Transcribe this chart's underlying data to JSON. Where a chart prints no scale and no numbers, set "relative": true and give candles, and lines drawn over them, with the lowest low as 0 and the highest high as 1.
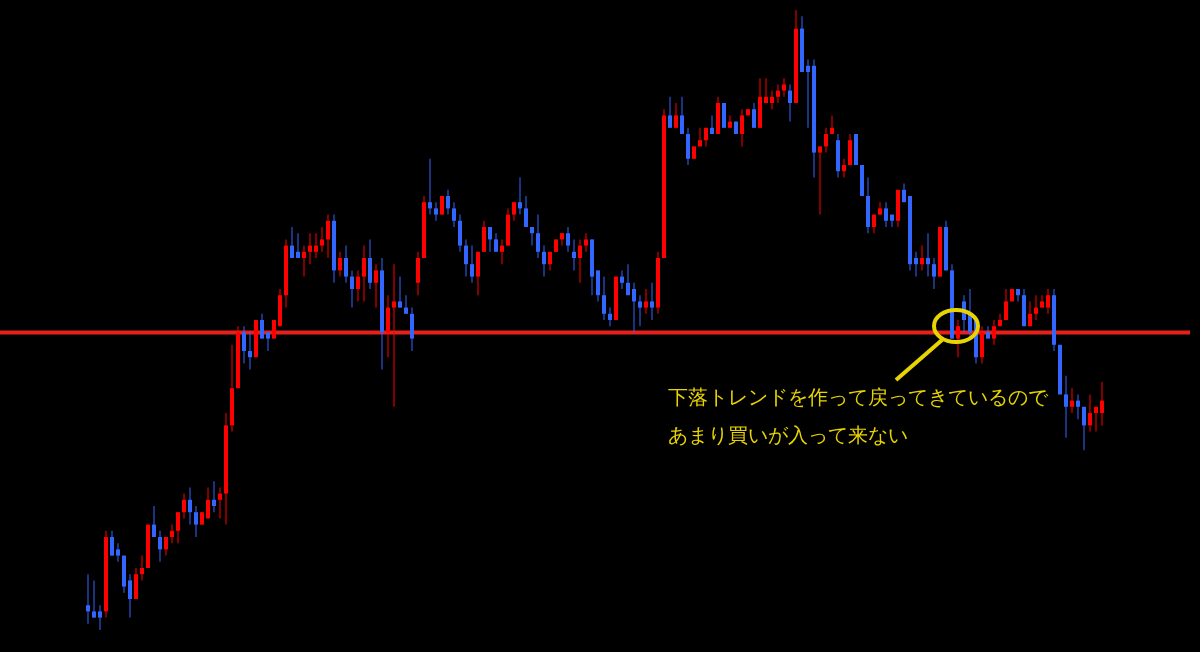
{
  "chart_data": {
    "type": "candlestick",
    "relative": true,
    "tick_labels": false,
    "categories": [
      null,
      null,
      null,
      null,
      null,
      null,
      null,
      null,
      null,
      null,
      null,
      null,
      null,
      null,
      null,
      null,
      null,
      null,
      null,
      null,
      null,
      null,
      null,
      null,
      null,
      null,
      null,
      null,
      null,
      null,
      null,
      null,
      null,
      null,
      null,
      null,
      null,
      null,
      null,
      null,
      null,
      null,
      null,
      null,
      null,
      null,
      null,
      null,
      null,
      null,
      null,
      null,
      null,
      null,
      null,
      null,
      null,
      null,
      null,
      null,
      null,
      null,
      null,
      null,
      null,
      null,
      null,
      null,
      null,
      null,
      null,
      null,
      null,
      null,
      null,
      null,
      null,
      null,
      null,
      null,
      null,
      null,
      null,
      null,
      null,
      null,
      null,
      null,
      null,
      null,
      null,
      null,
      null,
      null,
      null,
      null,
      null,
      null,
      null,
      null,
      null,
      null,
      null,
      null,
      null,
      null,
      null,
      null,
      null,
      null,
      null,
      null,
      null,
      null,
      null,
      null,
      null,
      null,
      null,
      null,
      null,
      null,
      null,
      null,
      null,
      null,
      null,
      null,
      null,
      null,
      null,
      null,
      null,
      null,
      null,
      null,
      null,
      null,
      null,
      null,
      null,
      null,
      null,
      null,
      null,
      null,
      null,
      null,
      null,
      null,
      null,
      null,
      null,
      null,
      null,
      null,
      null,
      null,
      null,
      null,
      null,
      null,
      null,
      null,
      null,
      null,
      null,
      null,
      null,
      null
    ],
    "ohlc": [
      [
        0.04,
        0.09,
        0.01,
        0.03
      ],
      [
        0.03,
        0.08,
        0.02,
        0.02
      ],
      [
        0.03,
        0.04,
        0.0,
        0.02
      ],
      [
        0.03,
        0.16,
        0.02,
        0.15
      ],
      [
        0.15,
        0.16,
        0.12,
        0.12
      ],
      [
        0.13,
        0.14,
        0.11,
        0.12
      ],
      [
        0.12,
        0.12,
        0.06,
        0.07
      ],
      [
        0.08,
        0.09,
        0.02,
        0.05
      ],
      [
        0.05,
        0.1,
        0.05,
        0.09
      ],
      [
        0.09,
        0.12,
        0.08,
        0.1
      ],
      [
        0.1,
        0.17,
        0.1,
        0.17
      ],
      [
        0.17,
        0.2,
        0.15,
        0.15
      ],
      [
        0.15,
        0.16,
        0.11,
        0.13
      ],
      [
        0.13,
        0.15,
        0.12,
        0.15
      ],
      [
        0.15,
        0.17,
        0.14,
        0.16
      ],
      [
        0.16,
        0.19,
        0.14,
        0.19
      ],
      [
        0.19,
        0.22,
        0.18,
        0.21
      ],
      [
        0.21,
        0.23,
        0.17,
        0.19
      ],
      [
        0.19,
        0.2,
        0.15,
        0.17
      ],
      [
        0.17,
        0.19,
        0.17,
        0.19
      ],
      [
        0.18,
        0.23,
        0.18,
        0.21
      ],
      [
        0.21,
        0.24,
        0.19,
        0.2
      ],
      [
        0.21,
        0.23,
        0.18,
        0.22
      ],
      [
        0.22,
        0.35,
        0.17,
        0.33
      ],
      [
        0.33,
        0.46,
        0.32,
        0.39
      ],
      [
        0.39,
        0.49,
        0.39,
        0.48
      ],
      [
        0.48,
        0.49,
        0.43,
        0.45
      ],
      [
        0.45,
        0.48,
        0.42,
        0.44
      ],
      [
        0.44,
        0.5,
        0.44,
        0.5
      ],
      [
        0.5,
        0.51,
        0.47,
        0.47
      ],
      [
        0.48,
        0.48,
        0.45,
        0.47
      ],
      [
        0.47,
        0.5,
        0.47,
        0.5
      ],
      [
        0.49,
        0.55,
        0.49,
        0.54
      ],
      [
        0.54,
        0.63,
        0.52,
        0.62
      ],
      [
        0.62,
        0.65,
        0.6,
        0.6
      ],
      [
        0.61,
        0.64,
        0.6,
        0.6
      ],
      [
        0.6,
        0.62,
        0.57,
        0.61
      ],
      [
        0.61,
        0.64,
        0.59,
        0.62
      ],
      [
        0.61,
        0.64,
        0.6,
        0.62
      ],
      [
        0.62,
        0.65,
        0.61,
        0.63
      ],
      [
        0.63,
        0.67,
        0.6,
        0.66
      ],
      [
        0.66,
        0.67,
        0.56,
        0.58
      ],
      [
        0.58,
        0.61,
        0.57,
        0.6
      ],
      [
        0.6,
        0.62,
        0.56,
        0.57
      ],
      [
        0.57,
        0.58,
        0.52,
        0.55
      ],
      [
        0.55,
        0.58,
        0.53,
        0.57
      ],
      [
        0.57,
        0.62,
        0.53,
        0.6
      ],
      [
        0.6,
        0.63,
        0.55,
        0.56
      ],
      [
        0.56,
        0.59,
        0.52,
        0.58
      ],
      [
        0.58,
        0.6,
        0.42,
        0.48
      ],
      [
        0.48,
        0.54,
        0.44,
        0.52
      ],
      [
        0.52,
        0.59,
        0.36,
        0.53
      ],
      [
        0.53,
        0.57,
        0.52,
        0.52
      ],
      [
        0.52,
        0.54,
        0.51,
        0.51
      ],
      [
        0.51,
        0.52,
        0.45,
        0.47
      ],
      [
        0.56,
        0.61,
        0.54,
        0.6
      ],
      [
        0.6,
        0.7,
        0.6,
        0.69
      ],
      [
        0.69,
        0.76,
        0.67,
        0.68
      ],
      [
        0.68,
        0.69,
        0.66,
        0.67
      ],
      [
        0.67,
        0.7,
        0.67,
        0.7
      ],
      [
        0.7,
        0.71,
        0.67,
        0.68
      ],
      [
        0.68,
        0.69,
        0.65,
        0.66
      ],
      [
        0.66,
        0.67,
        0.61,
        0.62
      ],
      [
        0.62,
        0.63,
        0.57,
        0.59
      ],
      [
        0.59,
        0.62,
        0.56,
        0.57
      ],
      [
        0.57,
        0.61,
        0.54,
        0.61
      ],
      [
        0.61,
        0.66,
        0.61,
        0.65
      ],
      [
        0.65,
        0.65,
        0.61,
        0.63
      ],
      [
        0.63,
        0.64,
        0.61,
        0.61
      ],
      [
        0.61,
        0.63,
        0.59,
        0.62
      ],
      [
        0.62,
        0.68,
        0.62,
        0.67
      ],
      [
        0.67,
        0.69,
        0.66,
        0.69
      ],
      [
        0.69,
        0.73,
        0.67,
        0.68
      ],
      [
        0.68,
        0.7,
        0.65,
        0.65
      ],
      [
        0.65,
        0.65,
        0.62,
        0.64
      ],
      [
        0.64,
        0.67,
        0.6,
        0.61
      ],
      [
        0.61,
        0.62,
        0.57,
        0.59
      ],
      [
        0.59,
        0.61,
        0.58,
        0.61
      ],
      [
        0.61,
        0.63,
        0.61,
        0.63
      ],
      [
        0.63,
        0.64,
        0.62,
        0.64
      ],
      [
        0.64,
        0.65,
        0.61,
        0.62
      ],
      [
        0.61,
        0.63,
        0.58,
        0.6
      ],
      [
        0.6,
        0.63,
        0.56,
        0.62
      ],
      [
        0.62,
        0.64,
        0.61,
        0.63
      ],
      [
        0.63,
        0.63,
        0.54,
        0.57
      ],
      [
        0.58,
        0.58,
        0.53,
        0.54
      ],
      [
        0.54,
        0.57,
        0.5,
        0.51
      ],
      [
        0.51,
        0.52,
        0.49,
        0.5
      ],
      [
        0.5,
        0.57,
        0.5,
        0.57
      ],
      [
        0.57,
        0.58,
        0.55,
        0.56
      ],
      [
        0.56,
        0.59,
        0.54,
        0.54
      ],
      [
        0.55,
        0.56,
        0.48,
        0.53
      ],
      [
        0.53,
        0.54,
        0.49,
        0.52
      ],
      [
        0.52,
        0.55,
        0.51,
        0.53
      ],
      [
        0.53,
        0.56,
        0.5,
        0.52
      ],
      [
        0.52,
        0.61,
        0.51,
        0.6
      ],
      [
        0.6,
        0.84,
        0.6,
        0.83
      ],
      [
        0.83,
        0.86,
        0.81,
        0.81
      ],
      [
        0.81,
        0.85,
        0.81,
        0.83
      ],
      [
        0.83,
        0.86,
        0.8,
        0.8
      ],
      [
        0.8,
        0.81,
        0.75,
        0.76
      ],
      [
        0.76,
        0.78,
        0.76,
        0.78
      ],
      [
        0.78,
        0.81,
        0.78,
        0.79
      ],
      [
        0.79,
        0.81,
        0.78,
        0.81
      ],
      [
        0.81,
        0.83,
        0.8,
        0.8
      ],
      [
        0.8,
        0.86,
        0.8,
        0.85
      ],
      [
        0.85,
        0.85,
        0.81,
        0.81
      ],
      [
        0.81,
        0.83,
        0.81,
        0.82
      ],
      [
        0.82,
        0.82,
        0.8,
        0.8
      ],
      [
        0.8,
        0.84,
        0.78,
        0.83
      ],
      [
        0.83,
        0.84,
        0.83,
        0.84
      ],
      [
        0.84,
        0.85,
        0.81,
        0.81
      ],
      [
        0.81,
        0.89,
        0.81,
        0.86
      ],
      [
        0.85,
        0.89,
        0.85,
        0.86
      ],
      [
        0.85,
        0.87,
        0.84,
        0.86
      ],
      [
        0.86,
        0.88,
        0.85,
        0.87
      ],
      [
        0.87,
        0.89,
        0.86,
        0.88
      ],
      [
        0.87,
        0.88,
        0.82,
        0.85
      ],
      [
        0.85,
        1.0,
        0.85,
        0.97
      ],
      [
        0.97,
        0.99,
        0.9,
        0.9
      ],
      [
        0.91,
        0.92,
        0.81,
        0.9
      ],
      [
        0.91,
        0.92,
        0.73,
        0.77
      ],
      [
        0.77,
        0.78,
        0.67,
        0.78
      ],
      [
        0.78,
        0.81,
        0.77,
        0.8
      ],
      [
        0.8,
        0.83,
        0.8,
        0.81
      ],
      [
        0.79,
        0.8,
        0.73,
        0.74
      ],
      [
        0.74,
        0.76,
        0.73,
        0.75
      ],
      [
        0.75,
        0.8,
        0.75,
        0.79
      ],
      [
        0.8,
        0.8,
        0.75,
        0.75
      ],
      [
        0.75,
        0.75,
        0.7,
        0.7
      ],
      [
        0.7,
        0.73,
        0.64,
        0.65
      ],
      [
        0.65,
        0.67,
        0.64,
        0.67
      ],
      [
        0.67,
        0.69,
        0.67,
        0.68
      ],
      [
        0.68,
        0.69,
        0.65,
        0.66
      ],
      [
        0.67,
        0.67,
        0.65,
        0.66
      ],
      [
        0.66,
        0.71,
        0.65,
        0.71
      ],
      [
        0.71,
        0.72,
        0.69,
        0.69
      ],
      [
        0.7,
        0.7,
        0.58,
        0.59
      ],
      [
        0.6,
        0.61,
        0.57,
        0.59
      ],
      [
        0.59,
        0.62,
        0.58,
        0.6
      ],
      [
        0.6,
        0.64,
        0.57,
        0.59
      ],
      [
        0.59,
        0.6,
        0.55,
        0.57
      ],
      [
        0.57,
        0.65,
        0.57,
        0.65
      ],
      [
        0.65,
        0.66,
        0.58,
        0.58
      ],
      [
        0.58,
        0.59,
        0.47,
        0.47
      ],
      [
        0.47,
        0.5,
        0.44,
        0.49
      ],
      [
        0.53,
        0.54,
        0.48,
        0.5
      ],
      [
        0.51,
        0.55,
        0.47,
        0.48
      ],
      [
        0.5,
        0.5,
        0.43,
        0.44
      ],
      [
        0.44,
        0.49,
        0.43,
        0.48
      ],
      [
        0.48,
        0.49,
        0.47,
        0.47
      ],
      [
        0.47,
        0.5,
        0.46,
        0.49
      ],
      [
        0.49,
        0.51,
        0.49,
        0.5
      ],
      [
        0.5,
        0.55,
        0.5,
        0.53
      ],
      [
        0.53,
        0.55,
        0.53,
        0.55
      ],
      [
        0.55,
        0.55,
        0.53,
        0.54
      ],
      [
        0.54,
        0.55,
        0.49,
        0.49
      ],
      [
        0.49,
        0.53,
        0.49,
        0.51
      ],
      [
        0.51,
        0.54,
        0.5,
        0.52
      ],
      [
        0.52,
        0.54,
        0.52,
        0.53
      ],
      [
        0.52,
        0.55,
        0.51,
        0.54
      ],
      [
        0.54,
        0.55,
        0.45,
        0.46
      ],
      [
        0.46,
        0.46,
        0.38,
        0.38
      ],
      [
        0.38,
        0.41,
        0.31,
        0.36
      ],
      [
        0.36,
        0.39,
        0.35,
        0.37
      ],
      [
        0.37,
        0.38,
        0.34,
        0.36
      ],
      [
        0.36,
        0.36,
        0.29,
        0.33
      ],
      [
        0.33,
        0.38,
        0.32,
        0.35
      ],
      [
        0.35,
        0.36,
        0.32,
        0.36
      ],
      [
        0.35,
        0.4,
        0.33,
        0.37
      ]
    ],
    "colors": [
      "#3366ff",
      "#3366ff",
      "#3366ff",
      "#ff0000",
      "#3366ff",
      "#3366ff",
      "#3366ff",
      "#3366ff",
      "#ff0000",
      "#ff0000",
      "#ff0000",
      "#3366ff",
      "#3366ff",
      "#ff0000",
      "#ff0000",
      "#ff0000",
      "#ff0000",
      "#3366ff",
      "#3366ff",
      "#ff0000",
      "#ff0000",
      "#3366ff",
      "#ff0000",
      "#ff0000",
      "#ff0000",
      "#ff0000",
      "#3366ff",
      "#3366ff",
      "#ff0000",
      "#3366ff",
      "#3366ff",
      "#ff0000",
      "#ff0000",
      "#ff0000",
      "#3366ff",
      "#3366ff",
      "#ff0000",
      "#ff0000",
      "#ff0000",
      "#ff0000",
      "#ff0000",
      "#3366ff",
      "#ff0000",
      "#3366ff",
      "#3366ff",
      "#ff0000",
      "#ff0000",
      "#3366ff",
      "#ff0000",
      "#3366ff",
      "#ff0000",
      "#ff0000",
      "#3366ff",
      "#3366ff",
      "#3366ff",
      "#ff0000",
      "#ff0000",
      "#3366ff",
      "#3366ff",
      "#ff0000",
      "#3366ff",
      "#3366ff",
      "#3366ff",
      "#3366ff",
      "#3366ff",
      "#ff0000",
      "#ff0000",
      "#3366ff",
      "#3366ff",
      "#ff0000",
      "#ff0000",
      "#ff0000",
      "#3366ff",
      "#3366ff",
      "#3366ff",
      "#3366ff",
      "#3366ff",
      "#ff0000",
      "#ff0000",
      "#ff0000",
      "#3366ff",
      "#3366ff",
      "#ff0000",
      "#ff0000",
      "#3366ff",
      "#3366ff",
      "#3366ff",
      "#3366ff",
      "#ff0000",
      "#3366ff",
      "#3366ff",
      "#3366ff",
      "#3366ff",
      "#ff0000",
      "#3366ff",
      "#ff0000",
      "#ff0000",
      "#3366ff",
      "#ff0000",
      "#3366ff",
      "#3366ff",
      "#ff0000",
      "#ff0000",
      "#ff0000",
      "#3366ff",
      "#ff0000",
      "#3366ff",
      "#ff0000",
      "#3366ff",
      "#ff0000",
      "#ff0000",
      "#3366ff",
      "#ff0000",
      "#ff0000",
      "#ff0000",
      "#ff0000",
      "#ff0000",
      "#3366ff",
      "#ff0000",
      "#3366ff",
      "#3366ff",
      "#3366ff",
      "#ff0000",
      "#ff0000",
      "#ff0000",
      "#3366ff",
      "#ff0000",
      "#ff0000",
      "#3366ff",
      "#3366ff",
      "#3366ff",
      "#ff0000",
      "#ff0000",
      "#3366ff",
      "#3366ff",
      "#ff0000",
      "#3366ff",
      "#3366ff",
      "#3366ff",
      "#ff0000",
      "#3366ff",
      "#3366ff",
      "#ff0000",
      "#3366ff",
      "#3366ff",
      "#ff0000",
      "#3366ff",
      "#3366ff",
      "#3366ff",
      "#ff0000",
      "#3366ff",
      "#ff0000",
      "#ff0000",
      "#ff0000",
      "#ff0000",
      "#3366ff",
      "#3366ff",
      "#ff0000",
      "#ff0000",
      "#ff0000",
      "#ff0000",
      "#3366ff",
      "#3366ff",
      "#3366ff",
      "#ff0000",
      "#3366ff",
      "#3366ff",
      "#ff0000",
      "#ff0000",
      "#ff0000"
    ],
    "ref_lines": [
      {
        "axis": "y",
        "value": 0.48,
        "color": "#e8201c"
      }
    ],
    "annotations": [
      "下落トレンドを作って戻ってきているので",
      "あまり買いが入って来ない"
    ]
  }
}
